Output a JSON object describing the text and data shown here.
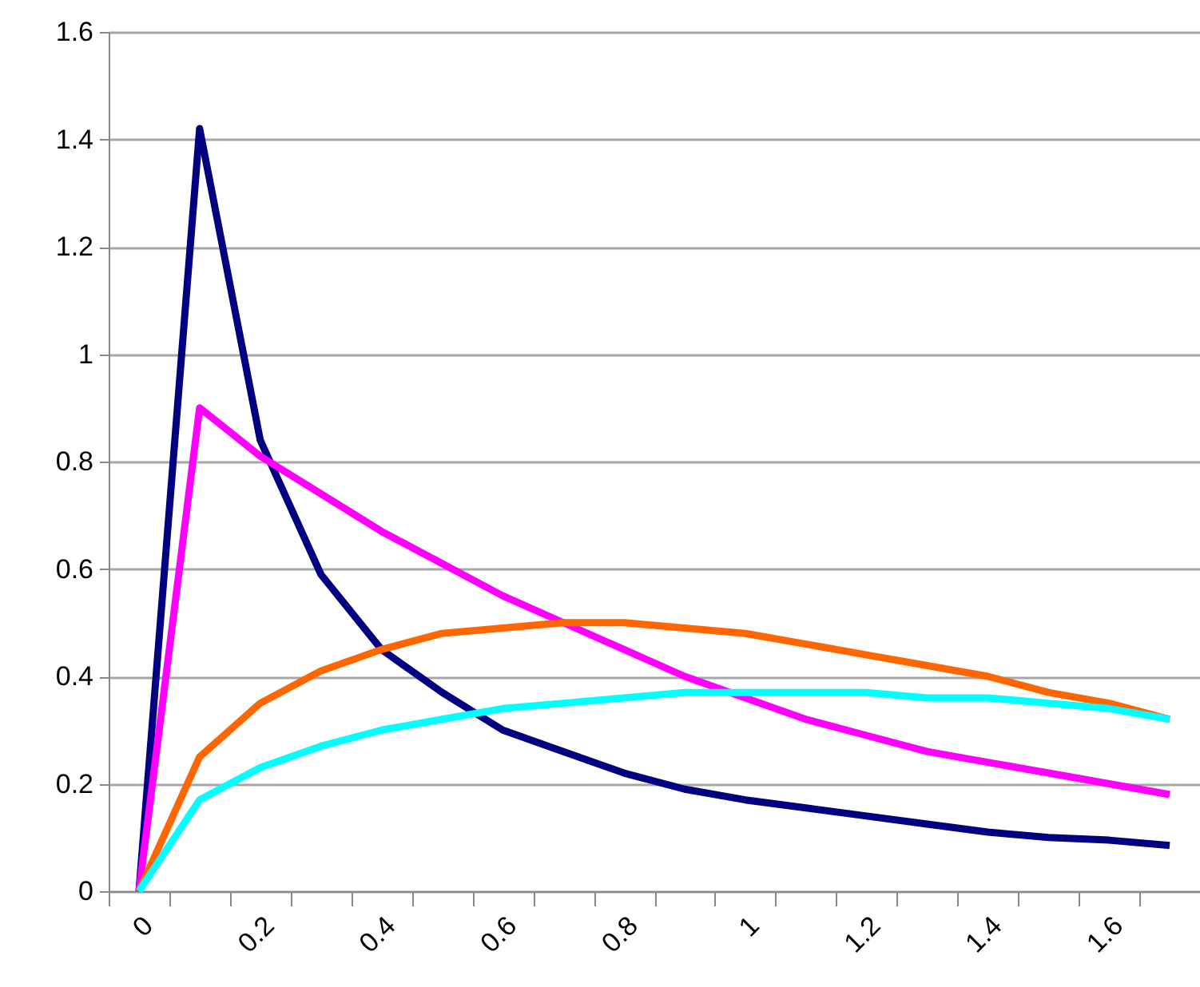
{
  "chart_data": {
    "type": "line",
    "categories": [
      "0",
      null,
      "0.2",
      null,
      "0.4",
      null,
      "0.6",
      null,
      "0.8",
      null,
      "1",
      null,
      "1.2",
      null,
      "1.4",
      null,
      "1.6",
      null
    ],
    "series": [
      {
        "color": "#000080",
        "values": [
          0,
          1.42,
          0.84,
          0.59,
          0.45,
          0.37,
          0.3,
          0.26,
          0.22,
          0.19,
          0.17,
          0.155,
          0.14,
          0.125,
          0.11,
          0.1,
          0.095,
          0.085
        ]
      },
      {
        "color": "#ff00ff",
        "values": [
          0,
          0.9,
          0.81,
          0.74,
          0.67,
          0.61,
          0.55,
          0.5,
          0.45,
          0.4,
          0.36,
          0.32,
          0.29,
          0.26,
          0.24,
          0.22,
          0.2,
          0.18
        ]
      },
      {
        "color": "#ff6600",
        "values": [
          0,
          0.25,
          0.35,
          0.41,
          0.45,
          0.48,
          0.49,
          0.5,
          0.5,
          0.49,
          0.48,
          0.46,
          0.44,
          0.42,
          0.4,
          0.37,
          0.35,
          0.32
        ]
      },
      {
        "color": "#00ffff",
        "values": [
          0,
          0.17,
          0.23,
          0.27,
          0.3,
          0.32,
          0.34,
          0.35,
          0.36,
          0.37,
          0.37,
          0.37,
          0.37,
          0.36,
          0.36,
          0.35,
          0.34,
          0.32
        ]
      }
    ],
    "ylim": [
      0,
      1.6
    ],
    "yticks": [
      0,
      0.2,
      0.4,
      0.6,
      0.8,
      1,
      1.2,
      1.4,
      1.6
    ],
    "grid": "y",
    "marker": "none",
    "line_style": "solid"
  }
}
